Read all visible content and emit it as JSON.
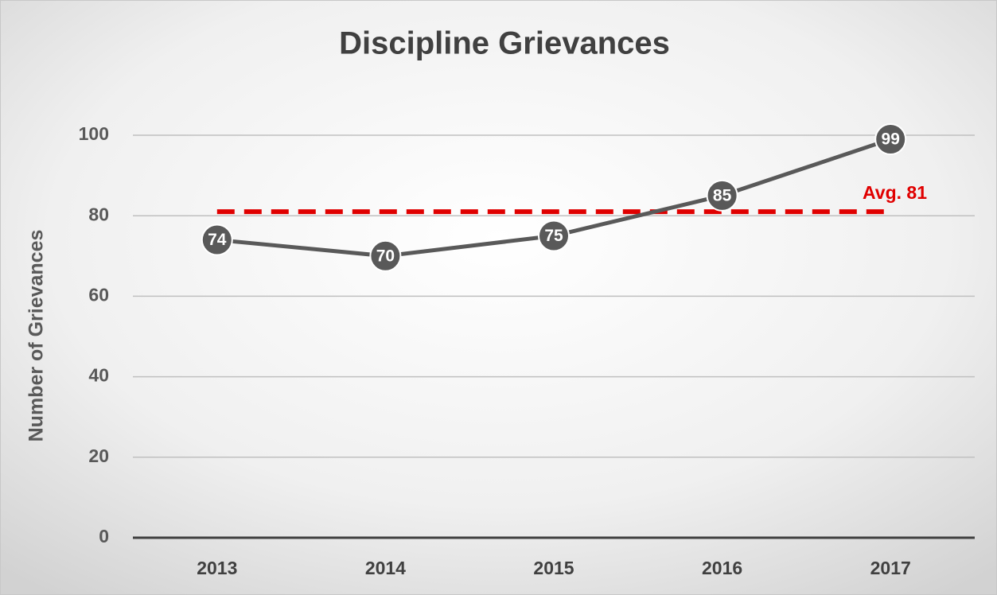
{
  "chart_data": {
    "type": "line",
    "title": "Discipline Grievances",
    "y_label": "Number of Grievances",
    "categories": [
      "2013",
      "2014",
      "2015",
      "2016",
      "2017"
    ],
    "values": [
      74,
      70,
      75,
      85,
      99
    ],
    "color": "#595959",
    "ylim": [
      0,
      100
    ],
    "yticks": [
      0,
      20,
      40,
      60,
      80,
      100
    ],
    "grid": true,
    "average": 81,
    "average_label": "Avg. 81",
    "average_color": "#e00000"
  }
}
